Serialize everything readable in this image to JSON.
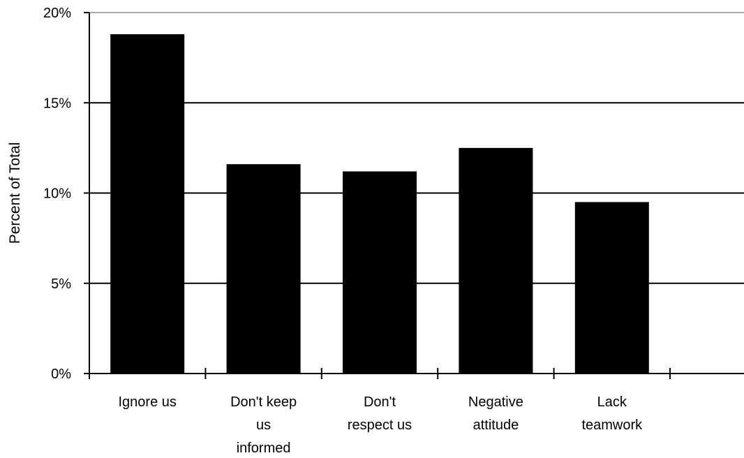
{
  "chart_data": {
    "type": "bar",
    "title": "",
    "xlabel": "",
    "ylabel": "Percent of Total",
    "categories": [
      [
        "Ignore us"
      ],
      [
        "Don't keep",
        "us",
        "informed"
      ],
      [
        "Don't",
        "respect us"
      ],
      [
        "Negative",
        "attitude"
      ],
      [
        "Lack",
        "teamwork"
      ]
    ],
    "values": [
      18.8,
      11.6,
      11.2,
      12.5,
      9.5
    ],
    "ylim": [
      0,
      20
    ],
    "y_ticks": [
      0,
      5,
      10,
      15,
      20
    ],
    "y_tick_labels": [
      "0%",
      "5%",
      "10%",
      "15%",
      "20%"
    ],
    "grid": true,
    "bar_color": "#000000",
    "gridline_color": "#000000",
    "legend": "none"
  }
}
